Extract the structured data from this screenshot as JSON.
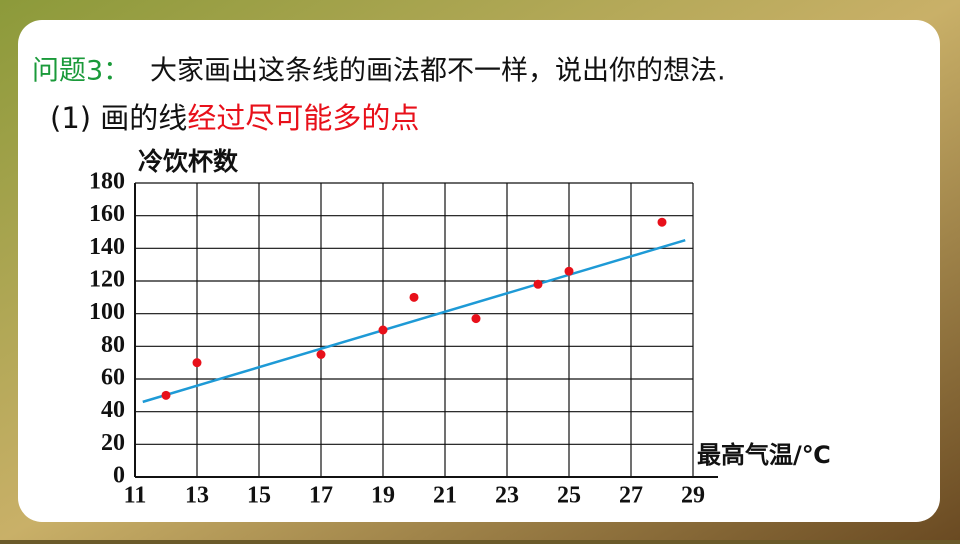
{
  "question_label": "问题3：",
  "question": "大家画出这条线的画法都不一样，说出你的想法.",
  "subtitle_prefix": "(1) 画的线",
  "subtitle_highlight": "经过尽可能多的点",
  "chart_data": {
    "type": "scatter",
    "y_label": "冷饮杯数",
    "x_label": "最高气温/℃",
    "x": [
      12,
      13,
      17,
      19,
      20,
      22,
      24,
      25,
      28
    ],
    "values": [
      50,
      70,
      75,
      90,
      110,
      97,
      118,
      126,
      156
    ],
    "color": "#e8101a",
    "fit_line": {
      "x": [
        11.25,
        28.75
      ],
      "y": [
        46,
        145
      ],
      "color": "#1e9ad6"
    },
    "xlim": [
      11,
      29
    ],
    "xticks": [
      11,
      13,
      15,
      17,
      19,
      21,
      23,
      25,
      27,
      29
    ],
    "ylim": [
      0,
      180
    ],
    "yticks": [
      0,
      20,
      40,
      60,
      80,
      100,
      120,
      140,
      160,
      180
    ],
    "grid": true
  }
}
